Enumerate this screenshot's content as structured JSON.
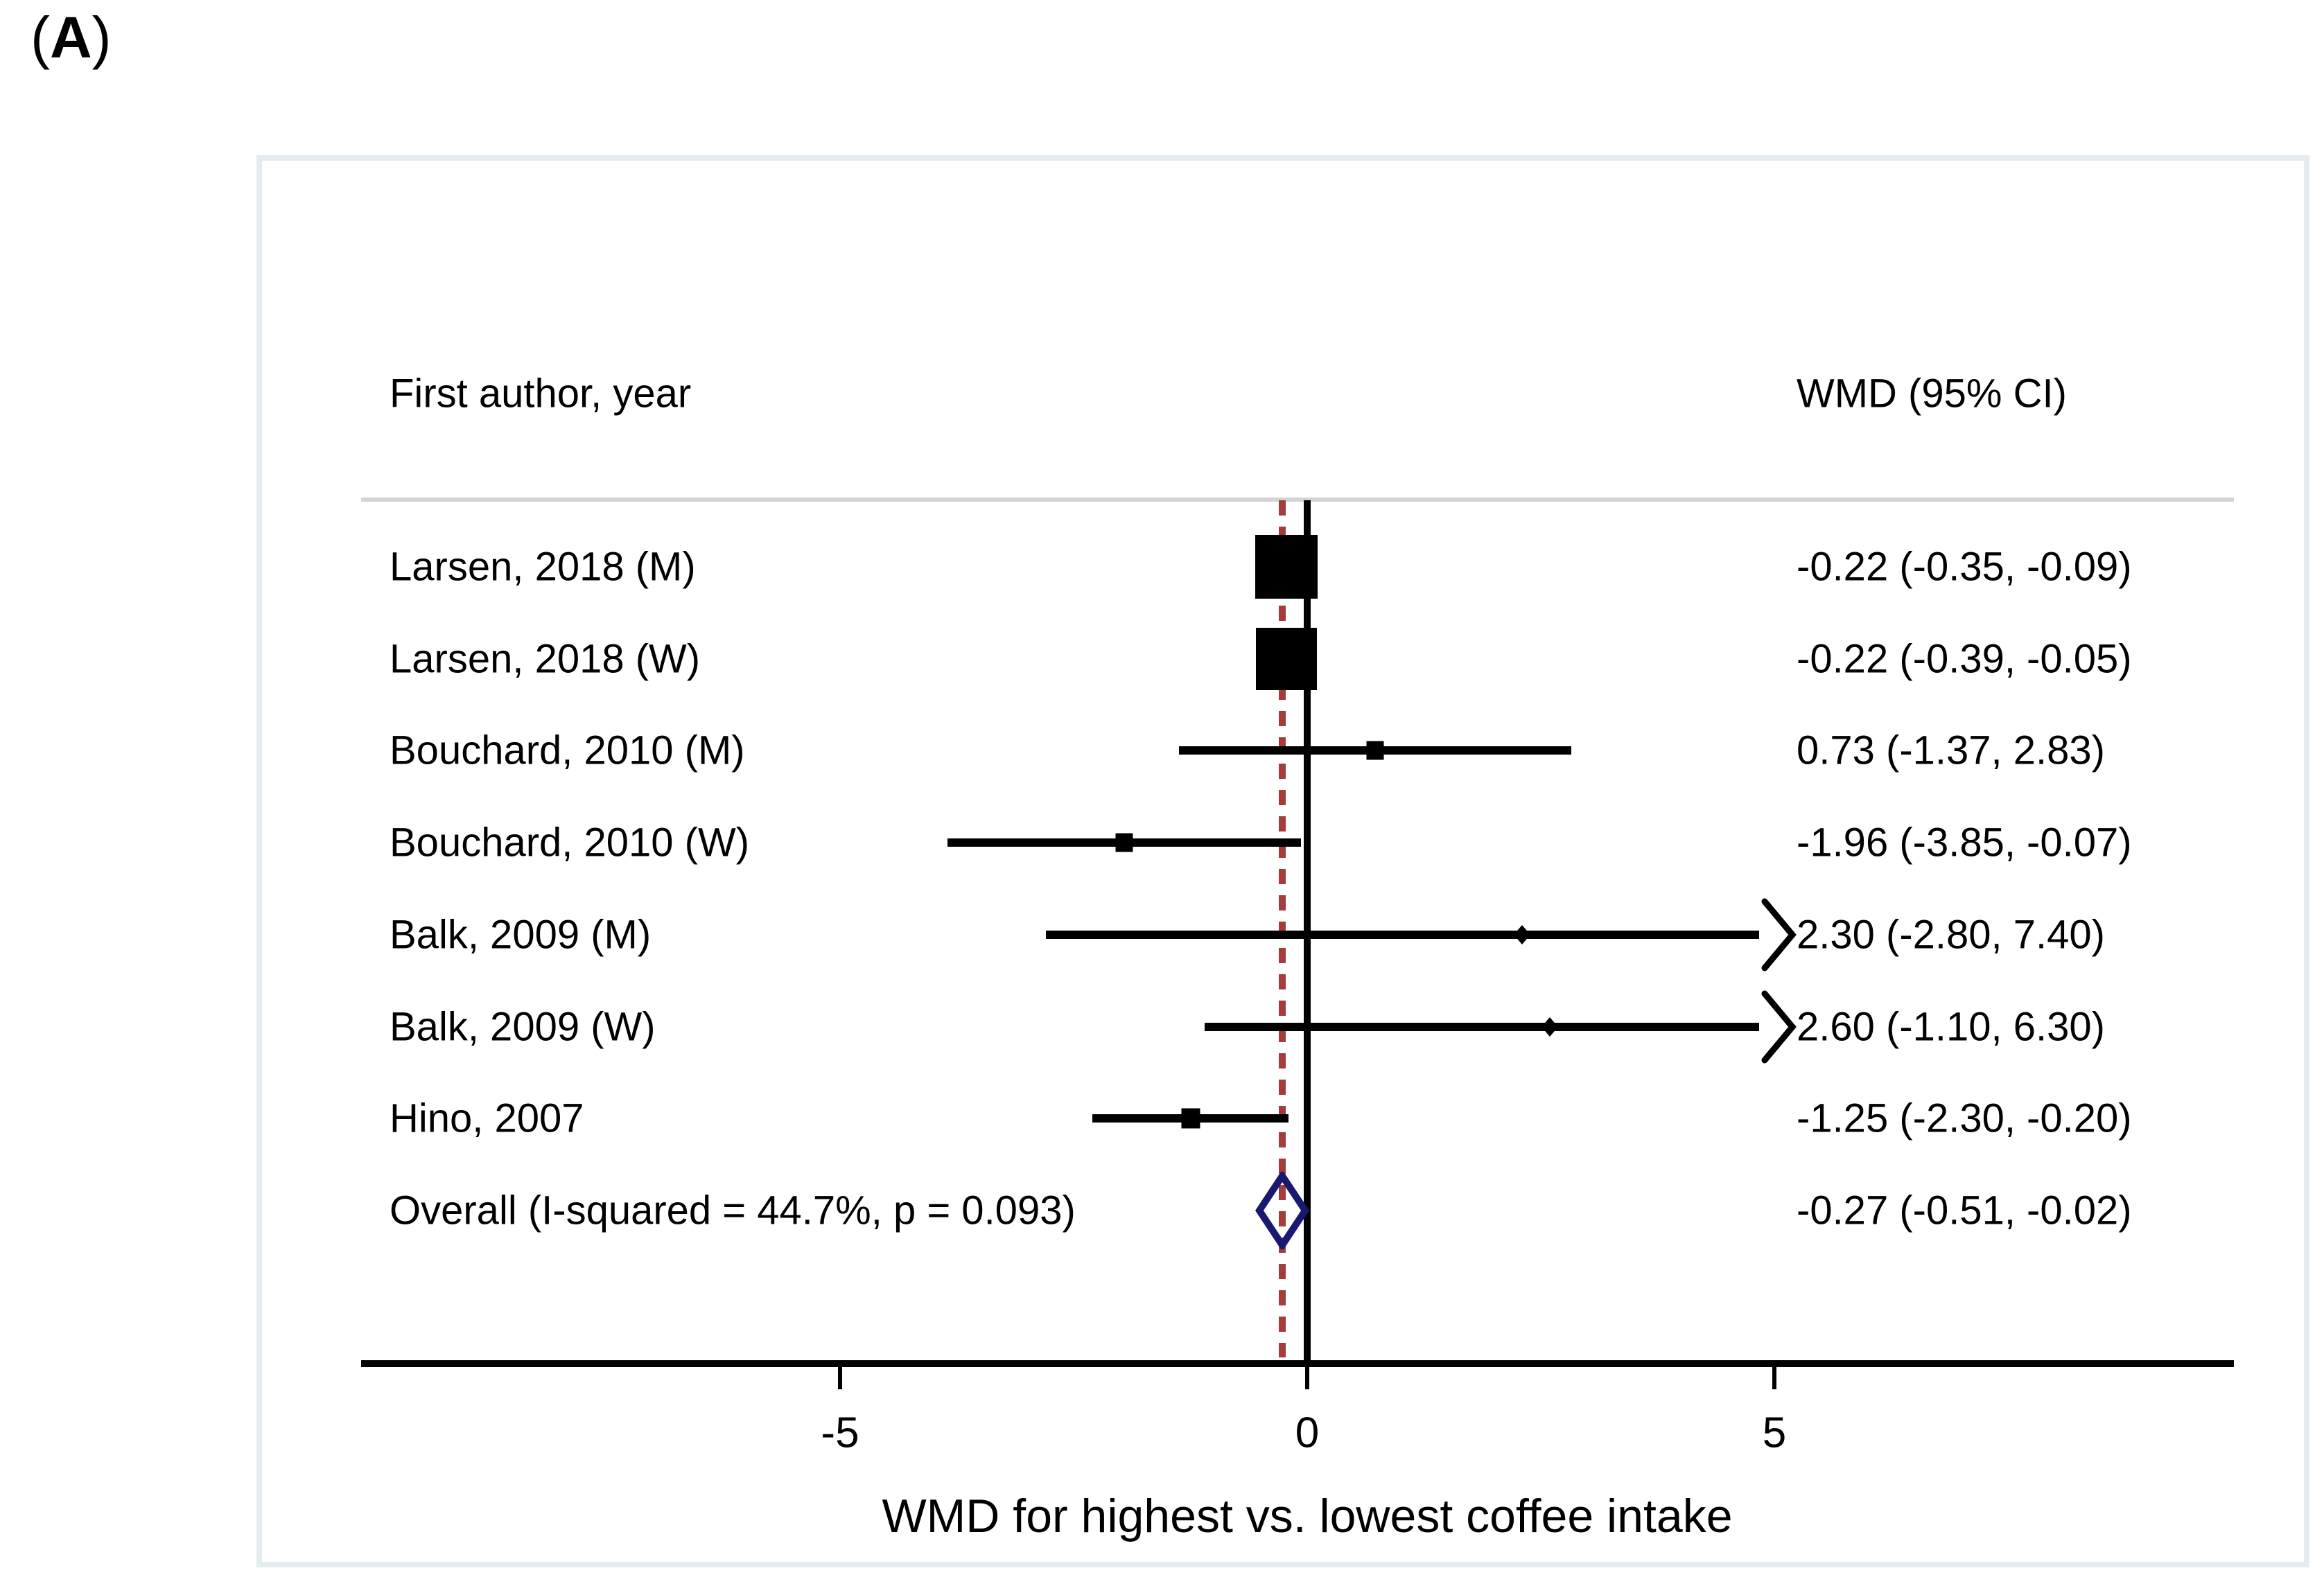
{
  "panel": {
    "open": "(",
    "letter": "A",
    "close": ")"
  },
  "chart_data": {
    "type": "forest",
    "title": "",
    "col_left_header": "First author, year",
    "col_right_header": "WMD (95% CI)",
    "xlabel": "WMD for highest vs. lowest coffee intake",
    "axis": {
      "ticks": [
        -5,
        0,
        5
      ],
      "tick_labels": [
        "-5",
        "0",
        "5"
      ],
      "null_line": 0,
      "pooled_line": -0.27,
      "clip_max": 5.05,
      "grid": false
    },
    "studies": [
      {
        "label": "Larsen, 2018 (M)",
        "est": -0.22,
        "lo": -0.35,
        "hi": -0.09,
        "ci_text": "-0.22 (-0.35, -0.09)",
        "marker": "square",
        "size": 90
      },
      {
        "label": "Larsen, 2018 (W)",
        "est": -0.22,
        "lo": -0.39,
        "hi": -0.05,
        "ci_text": "-0.22 (-0.39, -0.05)",
        "marker": "square",
        "size": 88
      },
      {
        "label": "Bouchard, 2010 (M)",
        "est": 0.73,
        "lo": -1.37,
        "hi": 2.83,
        "ci_text": "0.73 (-1.37, 2.83)",
        "marker": "square",
        "size": 25
      },
      {
        "label": "Bouchard, 2010 (W)",
        "est": -1.96,
        "lo": -3.85,
        "hi": -0.07,
        "ci_text": "-1.96 (-3.85, -0.07)",
        "marker": "square",
        "size": 25
      },
      {
        "label": "Balk, 2009 (M)",
        "est": 2.3,
        "lo": -2.8,
        "hi": 7.4,
        "ci_text": "2.30 (-2.80, 7.40)",
        "marker": "diamond",
        "size": 24
      },
      {
        "label": "Balk, 2009 (W)",
        "est": 2.6,
        "lo": -1.1,
        "hi": 6.3,
        "ci_text": "2.60 (-1.10, 6.30)",
        "marker": "diamond",
        "size": 24
      },
      {
        "label": "Hino, 2007",
        "est": -1.25,
        "lo": -2.3,
        "hi": -0.2,
        "ci_text": "-1.25 (-2.30, -0.20)",
        "marker": "square",
        "size": 27
      }
    ],
    "overall": {
      "label": "Overall  (I-squared = 44.7%, p = 0.093)",
      "est": -0.27,
      "lo": -0.51,
      "hi": -0.02,
      "ci_text": "-0.27 (-0.51, -0.02)"
    },
    "colors": {
      "marker": "#000000",
      "ci_line": "#000000",
      "null_line": "#000000",
      "pooled_dashed": "#a43c3c",
      "diamond_outline": "#191970",
      "box_border": "#e3edef",
      "header_divider": "#d3d3d3"
    }
  }
}
